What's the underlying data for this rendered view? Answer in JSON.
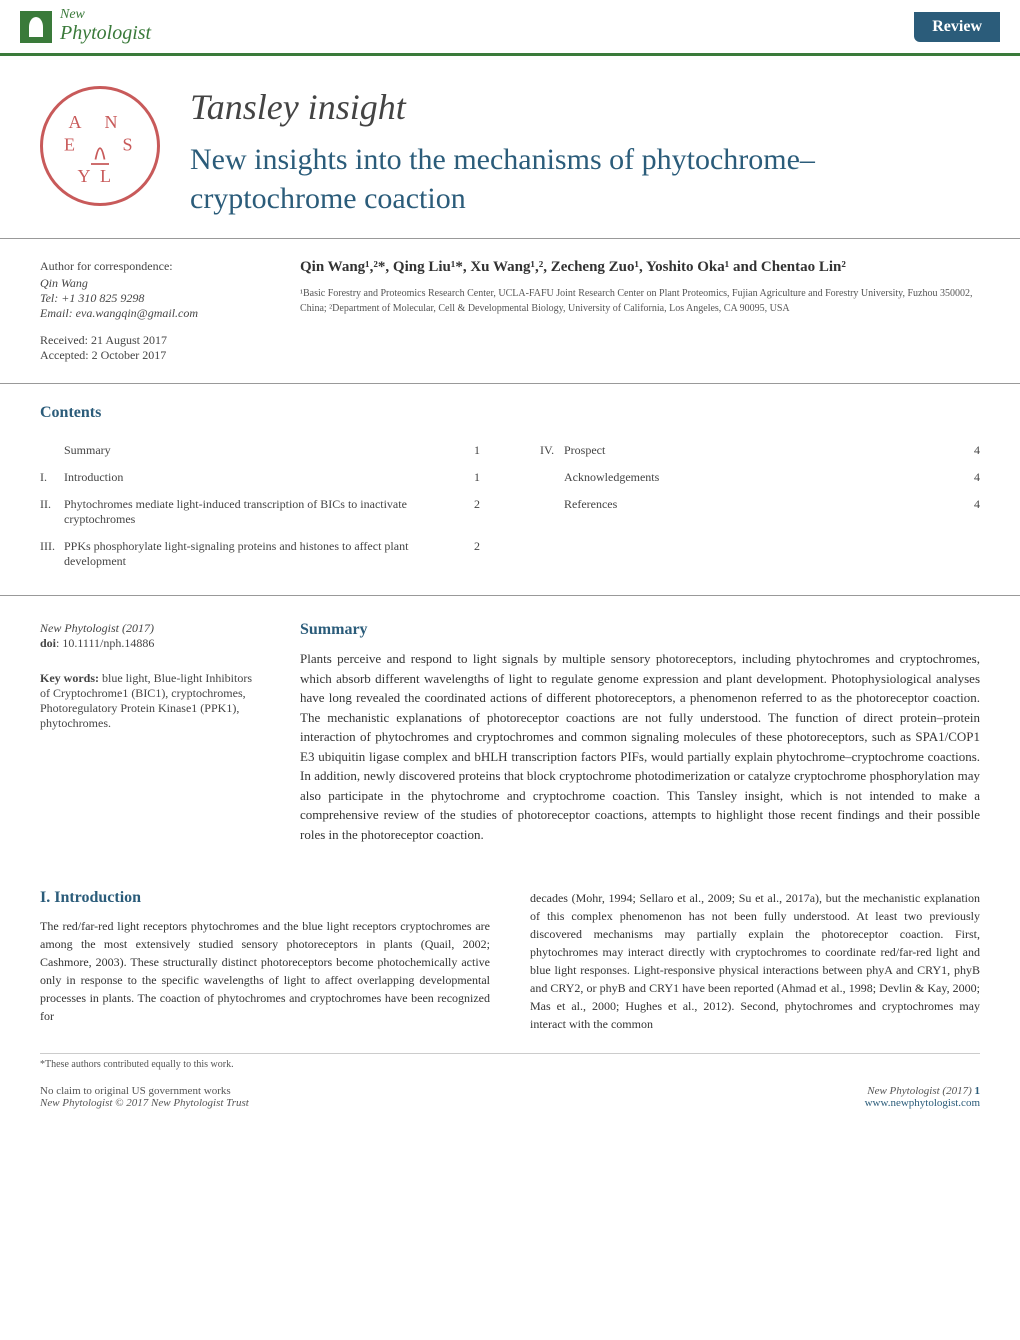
{
  "header": {
    "journal_new": "New",
    "journal_name": "Phytologist",
    "review_label": "Review"
  },
  "title": {
    "tansley": "Tansley insight",
    "main": "New insights into the mechanisms of phytochrome–cryptochrome coaction"
  },
  "correspondence": {
    "label": "Author for correspondence:",
    "author": "Qin Wang",
    "tel": "Tel: +1 310 825 9298",
    "email": "Email: eva.wangqin@gmail.com",
    "received": "Received: 21 August 2017",
    "accepted": "Accepted: 2 October 2017"
  },
  "authors": {
    "list": "Qin Wang¹,²*, Qing Liu¹*, Xu Wang¹,², Zecheng Zuo¹, Yoshito Oka¹ and Chentao Lin²",
    "affiliations": "¹Basic Forestry and Proteomics Research Center, UCLA-FAFU Joint Research Center on Plant Proteomics, Fujian Agriculture and Forestry University, Fuzhou 350002, China; ²Department of Molecular, Cell & Developmental Biology, University of California, Los Angeles, CA 90095, USA"
  },
  "contents": {
    "title": "Contents",
    "left": [
      {
        "num": "",
        "txt": "Summary",
        "pg": "1"
      },
      {
        "num": "I.",
        "txt": "Introduction",
        "pg": "1"
      },
      {
        "num": "II.",
        "txt": "Phytochromes mediate light-induced transcription of BICs to inactivate cryptochromes",
        "pg": "2"
      },
      {
        "num": "III.",
        "txt": "PPKs phosphorylate light-signaling proteins and histones to affect plant development",
        "pg": "2"
      }
    ],
    "right": [
      {
        "num": "IV.",
        "txt": "Prospect",
        "pg": "4"
      },
      {
        "num": "",
        "txt": "Acknowledgements",
        "pg": "4"
      },
      {
        "num": "",
        "txt": "References",
        "pg": "4"
      }
    ]
  },
  "summary": {
    "title": "Summary",
    "ref": "New Phytologist (2017)",
    "doi": "doi: 10.1111/nph.14886",
    "kw_label": "Key words:",
    "keywords": " blue light, Blue-light Inhibitors of Cryptochrome1 (BIC1), cryptochromes, Photoregulatory Protein Kinase1 (PPK1), phytochromes.",
    "text": "Plants perceive and respond to light signals by multiple sensory photoreceptors, including phytochromes and cryptochromes, which absorb different wavelengths of light to regulate genome expression and plant development. Photophysiological analyses have long revealed the coordinated actions of different photoreceptors, a phenomenon referred to as the photoreceptor coaction. The mechanistic explanations of photoreceptor coactions are not fully understood. The function of direct protein–protein interaction of phytochromes and cryptochromes and common signaling molecules of these photoreceptors, such as SPA1/COP1 E3 ubiquitin ligase complex and bHLH transcription factors PIFs, would partially explain phytochrome–cryptochrome coactions. In addition, newly discovered proteins that block cryptochrome photodimerization or catalyze cryptochrome phosphorylation may also participate in the phytochrome and cryptochrome coaction. This Tansley insight, which is not intended to make a comprehensive review of the studies of photoreceptor coactions, attempts to highlight those recent findings and their possible roles in the photoreceptor coaction."
  },
  "intro": {
    "title": "I. Introduction",
    "left_text": "The red/far-red light receptors phytochromes and the blue light receptors cryptochromes are among the most extensively studied sensory photoreceptors in plants (Quail, 2002; Cashmore, 2003). These structurally distinct photoreceptors become photochemically active only in response to the specific wavelengths of light to affect overlapping developmental processes in plants. The coaction of phytochromes and cryptochromes have been recognized for",
    "right_text": "decades (Mohr, 1994; Sellaro et al., 2009; Su et al., 2017a), but the mechanistic explanation of this complex phenomenon has not been fully understood. At least two previously discovered mechanisms may partially explain the photoreceptor coaction. First, phytochromes may interact directly with cryptochromes to coordinate red/far-red light and blue light responses. Light-responsive physical interactions between phyA and CRY1, phyB and CRY2, or phyB and CRY1 have been reported (Ahmad et al., 1998; Devlin & Kay, 2000; Mas et al., 2000; Hughes et al., 2012). Second, phytochromes and cryptochromes may interact with the common"
  },
  "footnote": "*These authors contributed equally to this work.",
  "footer": {
    "left1": "No claim to original US government works",
    "left2": "New Phytologist © 2017 New Phytologist Trust",
    "right1": "New Phytologist (2017)",
    "pagenum": "1",
    "right2": "www.newphytologist.com"
  },
  "colors": {
    "primary_blue": "#2b5c7a",
    "green": "#3a7a3a",
    "logo_red": "#c85a5a",
    "text": "#333333",
    "muted": "#555555"
  }
}
